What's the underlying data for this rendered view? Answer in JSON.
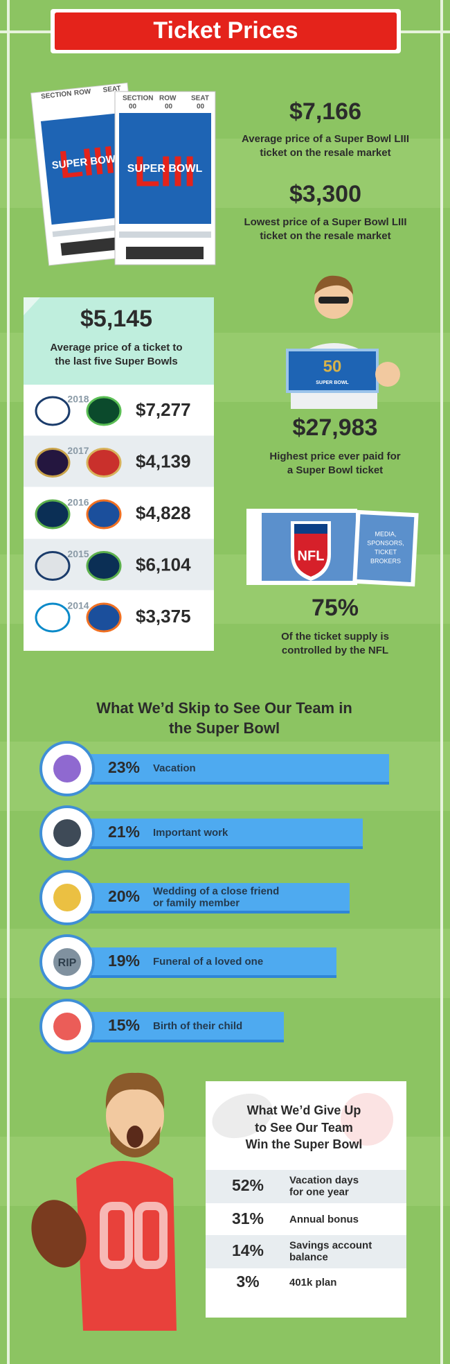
{
  "header": {
    "title": "Ticket Prices"
  },
  "tickets": {
    "section": "SECTION",
    "row": "ROW",
    "seat": "SEAT",
    "code": "00",
    "text": "SUPER BOWL",
    "numeral": "LIII"
  },
  "stats": [
    {
      "value": "$7,166",
      "label": [
        "Average price of a Super Bowl LIII",
        "ticket on the resale market"
      ]
    },
    {
      "value": "$3,300",
      "label": [
        "Lowest price of a Super Bowl LIII",
        "ticket on the resale market"
      ]
    }
  ],
  "five_bowls": {
    "value": "$5,145",
    "label": [
      "Average price of a ticket to",
      "the last five Super Bowls"
    ],
    "rows": [
      {
        "year": "2018",
        "price": "$7,277"
      },
      {
        "year": "2017",
        "price": "$4,139"
      },
      {
        "year": "2016",
        "price": "$4,828"
      },
      {
        "year": "2015",
        "price": "$6,104"
      },
      {
        "year": "2014",
        "price": "$3,375"
      }
    ]
  },
  "highest": {
    "badge": "50",
    "badge_text": "SUPER BOWL",
    "value": "$27,983",
    "label": [
      "Highest price ever paid for",
      "a Super Bowl ticket"
    ]
  },
  "supply": {
    "shield": "NFL",
    "stub": [
      "MEDIA,",
      "SPONSORS,",
      "TICKET",
      "BROKERS"
    ],
    "value": "75%",
    "label": [
      "Of the ticket supply is",
      "controlled by the NFL"
    ]
  },
  "skip": {
    "title": [
      "What We’d Skip to See Our Team in",
      "the Super Bowl"
    ],
    "items": [
      {
        "value": 23,
        "value_label": "23%",
        "label": [
          "Vacation"
        ]
      },
      {
        "value": 21,
        "value_label": "21%",
        "label": [
          "Important work"
        ]
      },
      {
        "value": 20,
        "value_label": "20%",
        "label": [
          "Wedding of a close friend",
          "or family member"
        ]
      },
      {
        "value": 19,
        "value_label": "19%",
        "label": [
          "Funeral of a loved one"
        ],
        "icon_text": "RIP"
      },
      {
        "value": 15,
        "value_label": "15%",
        "label": [
          "Birth of their child"
        ]
      }
    ]
  },
  "give_up": {
    "jersey": "00",
    "title": [
      "What We’d Give Up",
      "to See Our Team",
      "Win the Super Bowl"
    ],
    "rows": [
      {
        "percent": "52%",
        "label": [
          "Vacation days",
          "for one year"
        ]
      },
      {
        "percent": "31%",
        "label": [
          "Annual bonus"
        ]
      },
      {
        "percent": "14%",
        "label": [
          "Savings account",
          "balance"
        ]
      },
      {
        "percent": "3%",
        "label": [
          "401k plan"
        ]
      }
    ]
  }
}
